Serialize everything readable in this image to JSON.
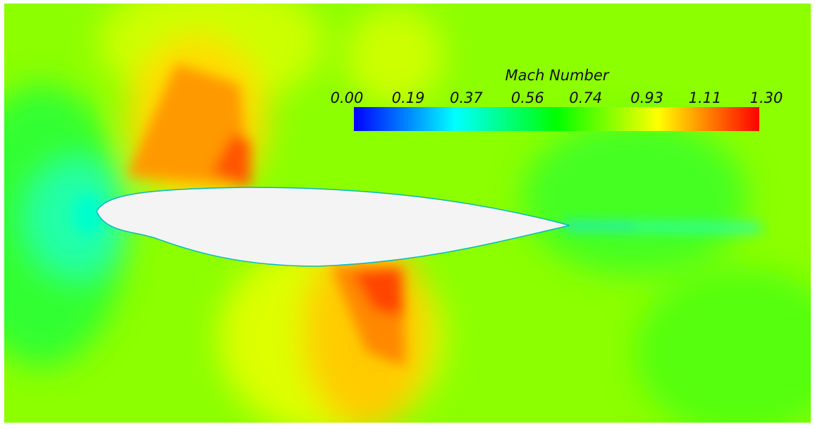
{
  "chart_data": {
    "type": "contour",
    "colorbar_title": "Mach Number",
    "clim": [
      0,
      1.3
    ],
    "cticks": [
      {
        "value": 0,
        "label": "0.00"
      },
      0.19,
      0.37,
      0.56,
      0.74,
      0.93,
      1.11,
      {
        "value": 1.3,
        "label": "1.30"
      }
    ],
    "colormap": [
      "#0000ff",
      "#00ffff",
      "#00ff00",
      "#ffff00",
      "#ff0000"
    ]
  }
}
